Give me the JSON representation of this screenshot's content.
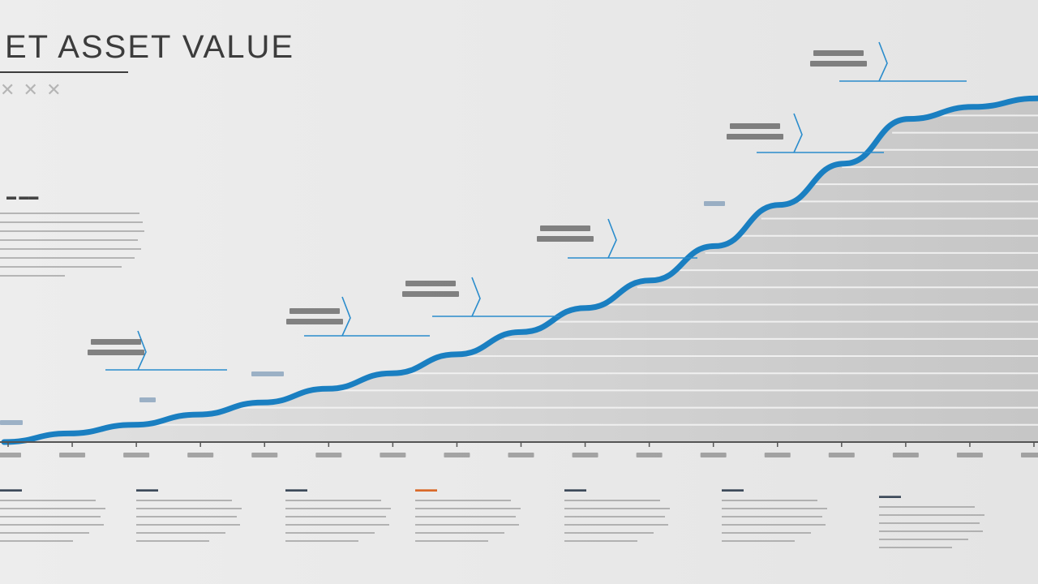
{
  "title": "ET ASSET VALUE",
  "chart_data": {
    "type": "area",
    "x": [
      0,
      1,
      2,
      3,
      4,
      5,
      6,
      7,
      8,
      9,
      10,
      11,
      12,
      13,
      14,
      15,
      16
    ],
    "values": [
      0,
      5,
      10,
      16,
      23,
      31,
      40,
      51,
      64,
      78,
      94,
      114,
      138,
      162,
      188,
      195,
      200
    ],
    "ylim": [
      0,
      210
    ],
    "grid": true,
    "line_color": "#1a7fc1",
    "fill_color": "#cdcdcd"
  },
  "callouts_count": 7,
  "bottom_columns_count": 7
}
